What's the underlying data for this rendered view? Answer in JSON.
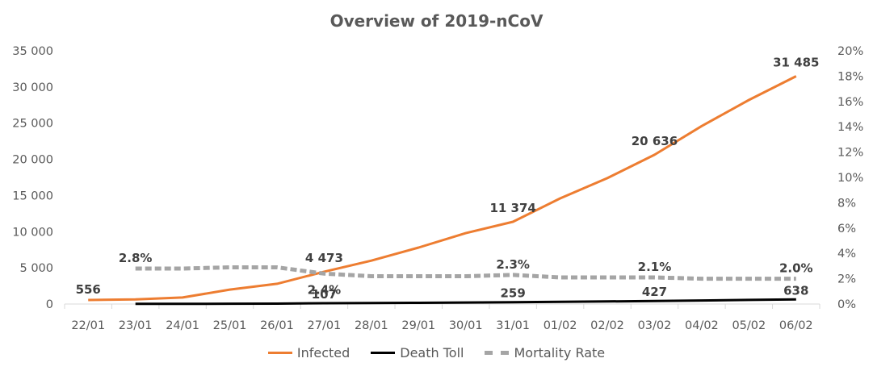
{
  "chart_data": {
    "type": "line",
    "title": "Overview of 2019-nCoV",
    "categories": [
      "22/01",
      "23/01",
      "24/01",
      "25/01",
      "26/01",
      "27/01",
      "28/01",
      "29/01",
      "30/01",
      "31/01",
      "01/02",
      "02/02",
      "03/02",
      "04/02",
      "05/02",
      "06/02"
    ],
    "y_left": {
      "range": [
        0,
        35000
      ],
      "ticks": [
        "0",
        "5 000",
        "10 000",
        "15 000",
        "20 000",
        "25 000",
        "30 000",
        "35 000"
      ]
    },
    "y_right": {
      "range": [
        0,
        0.2
      ],
      "ticks": [
        "0%",
        "2%",
        "4%",
        "6%",
        "8%",
        "10%",
        "12%",
        "14%",
        "16%",
        "18%",
        "20%"
      ]
    },
    "series": [
      {
        "name": "Infected",
        "axis": "left",
        "color": "#ED7D31",
        "style": "solid",
        "values": [
          556,
          650,
          900,
          2000,
          2800,
          4473,
          6000,
          7800,
          9800,
          11374,
          14600,
          17400,
          20636,
          24600,
          28200,
          31485
        ]
      },
      {
        "name": "Death Toll",
        "axis": "left",
        "color": "#000000",
        "style": "solid",
        "values": [
          null,
          18,
          26,
          42,
          56,
          107,
          132,
          170,
          213,
          259,
          304,
          361,
          427,
          492,
          564,
          638
        ]
      },
      {
        "name": "Mortality Rate",
        "axis": "right",
        "color": "#A5A5A5",
        "style": "dashed",
        "values": [
          null,
          0.028,
          0.028,
          0.029,
          0.029,
          0.024,
          0.022,
          0.022,
          0.022,
          0.023,
          0.021,
          0.021,
          0.021,
          0.02,
          0.02,
          0.02
        ]
      }
    ],
    "data_labels": [
      {
        "series": 0,
        "index": 0,
        "text": "556"
      },
      {
        "series": 0,
        "index": 5,
        "text": "4 473"
      },
      {
        "series": 0,
        "index": 9,
        "text": "11 374"
      },
      {
        "series": 0,
        "index": 12,
        "text": "20 636"
      },
      {
        "series": 0,
        "index": 15,
        "text": "31 485"
      },
      {
        "series": 1,
        "index": 5,
        "text": "107"
      },
      {
        "series": 1,
        "index": 9,
        "text": "259"
      },
      {
        "series": 1,
        "index": 12,
        "text": "427"
      },
      {
        "series": 1,
        "index": 15,
        "text": "638"
      },
      {
        "series": 2,
        "index": 1,
        "text": "2.8%"
      },
      {
        "series": 2,
        "index": 5,
        "text": "2.4%"
      },
      {
        "series": 2,
        "index": 9,
        "text": "2.3%"
      },
      {
        "series": 2,
        "index": 12,
        "text": "2.1%"
      },
      {
        "series": 2,
        "index": 15,
        "text": "2.0%"
      }
    ],
    "legend_position": "bottom",
    "grid": false
  }
}
